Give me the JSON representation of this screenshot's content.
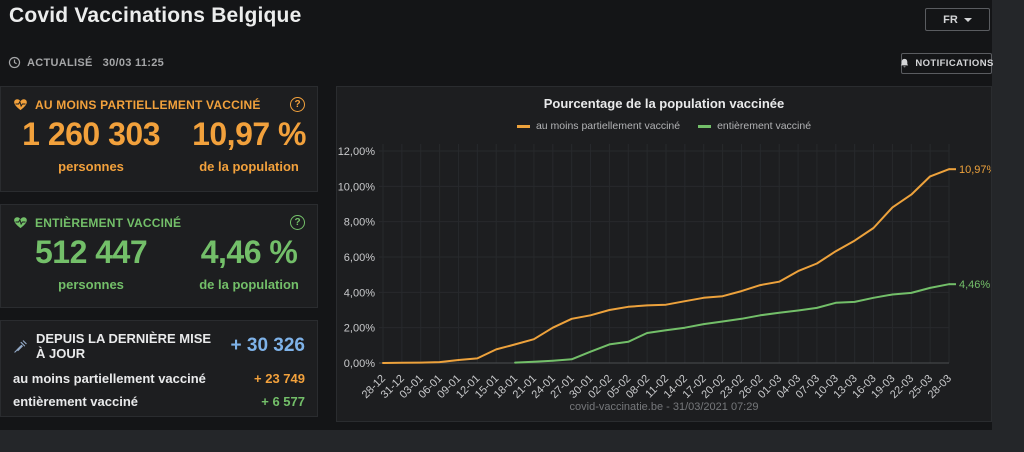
{
  "header": {
    "title": "Covid Vaccinations Belgique",
    "lang_button": "FR",
    "updated_label": "ACTUALISÉ",
    "updated_time": "30/03 11:25",
    "notifications_label": "NOTIFICATIONS"
  },
  "icons": {
    "help": "?"
  },
  "cards": {
    "partial": {
      "title": "AU MOINS PARTIELLEMENT VACCINÉ",
      "count": "1 260 303",
      "count_label": "personnes",
      "percent": "10,97 %",
      "percent_label": "de la population",
      "color": "#f2a13c"
    },
    "full": {
      "title": "ENTIÈREMENT VACCINÉ",
      "count": "512 447",
      "count_label": "personnes",
      "percent": "4,46 %",
      "percent_label": "de la population",
      "color": "#73bf69"
    },
    "delta": {
      "title": "DEPUIS LA DERNIÈRE MISE À JOUR",
      "total": "+ 30 326",
      "total_color": "#7eb2e8",
      "rows": [
        {
          "label": "au moins partiellement vacciné",
          "value": "+ 23 749",
          "color": "#f2a13c"
        },
        {
          "label": "entièrement vacciné",
          "value": "+ 6 577",
          "color": "#73bf69"
        }
      ]
    }
  },
  "chart": {
    "footer": "covid-vaccinatie.be - 31/03/2021 07:29"
  },
  "chart_data": {
    "type": "line",
    "title": "Pourcentage de la population vaccinée",
    "xlabel": "",
    "ylabel": "",
    "ylim": [
      0,
      12
    ],
    "grid": true,
    "legend_position": "top",
    "yticks": [
      "0,00%",
      "2,00%",
      "4,00%",
      "6,00%",
      "8,00%",
      "10,00%",
      "12,00%"
    ],
    "x": [
      "28-12",
      "31-12",
      "03-01",
      "06-01",
      "09-01",
      "12-01",
      "15-01",
      "18-01",
      "21-01",
      "24-01",
      "27-01",
      "30-01",
      "02-02",
      "05-02",
      "08-02",
      "11-02",
      "14-02",
      "17-02",
      "20-02",
      "23-02",
      "26-02",
      "01-03",
      "04-03",
      "07-03",
      "10-03",
      "13-03",
      "16-03",
      "19-03",
      "22-03",
      "25-03",
      "28-03"
    ],
    "series": [
      {
        "name": "au moins partiellement vacciné",
        "color": "#eda23c",
        "end_label": "10,97%",
        "values": [
          0.0,
          0.01,
          0.02,
          0.05,
          0.17,
          0.26,
          0.77,
          1.05,
          1.35,
          2.0,
          2.5,
          2.7,
          3.0,
          3.18,
          3.26,
          3.3,
          3.5,
          3.69,
          3.78,
          4.07,
          4.41,
          4.6,
          5.2,
          5.63,
          6.33,
          6.93,
          7.64,
          8.81,
          9.53,
          10.56,
          10.97
        ]
      },
      {
        "name": "entièrement vacciné",
        "color": "#73bf69",
        "end_label": "4,46%",
        "values": [
          null,
          null,
          null,
          null,
          null,
          null,
          null,
          0.02,
          0.07,
          0.13,
          0.21,
          0.64,
          1.05,
          1.2,
          1.7,
          1.85,
          2.0,
          2.2,
          2.35,
          2.5,
          2.7,
          2.85,
          2.97,
          3.12,
          3.41,
          3.46,
          3.69,
          3.88,
          3.97,
          4.25,
          4.46
        ]
      }
    ]
  }
}
